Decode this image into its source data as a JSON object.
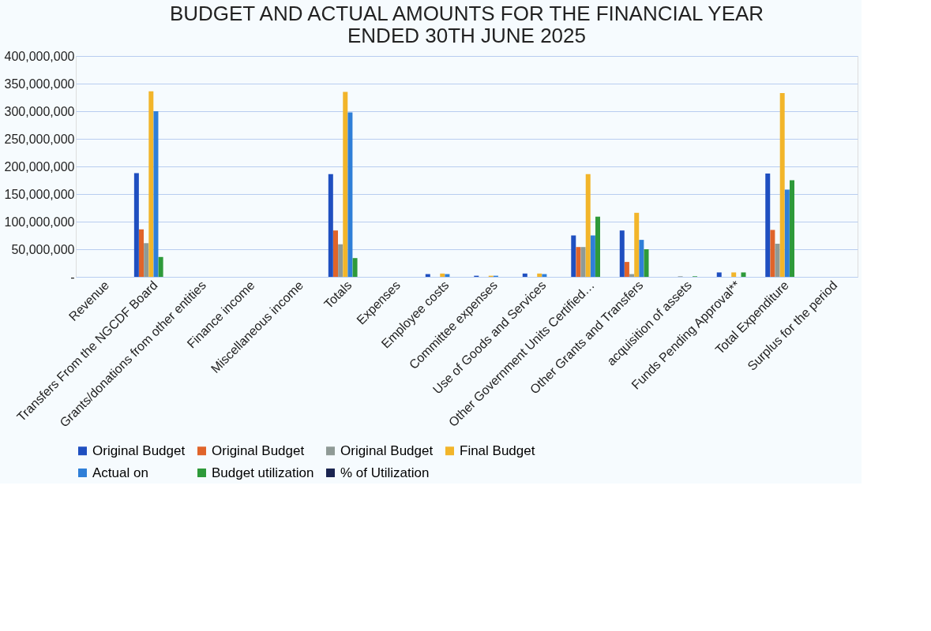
{
  "chart_data": {
    "type": "bar",
    "title": "BUDGET AND ACTUAL AMOUNTS FOR THE FINANCIAL YEAR ENDED 30TH JUNE 2025",
    "categories": [
      "Revenue",
      "Transfers From the NGCDF Board",
      "Grants/donations from other entities",
      "Finance income",
      "Miscellaneous income",
      "Totals",
      "Expenses",
      "Employee costs",
      "Committee expenses",
      "Use of Goods and Services",
      "Other Government Units Certified…",
      "Other Grants and Transfers",
      "acquisition of assets",
      "Funds Pending Approval**",
      "Total Expenditure",
      "Surplus for the period"
    ],
    "series": [
      {
        "name": "Original Budget",
        "color": "#1f4fc0",
        "values": [
          null,
          188000000,
          null,
          null,
          null,
          186000000,
          null,
          5000000,
          2000000,
          6000000,
          75000000,
          84000000,
          null,
          8000000,
          187000000,
          null
        ]
      },
      {
        "name": "Original Budget",
        "color": "#e0642a",
        "values": [
          null,
          86000000,
          null,
          null,
          null,
          84000000,
          null,
          null,
          null,
          null,
          54000000,
          27000000,
          null,
          null,
          85000000,
          null
        ]
      },
      {
        "name": "Original Budget",
        "color": "#8f9a96",
        "values": [
          null,
          61000000,
          null,
          null,
          null,
          59000000,
          null,
          null,
          null,
          null,
          54000000,
          5000000,
          1000000,
          null,
          60000000,
          null
        ]
      },
      {
        "name": "Final Budget",
        "color": "#f2b52a",
        "values": [
          null,
          336000000,
          null,
          null,
          null,
          335000000,
          null,
          6000000,
          2000000,
          6000000,
          186000000,
          116000000,
          null,
          8000000,
          333000000,
          null
        ]
      },
      {
        "name": "Actual on",
        "color": "#2f7fd8",
        "values": [
          null,
          300000000,
          null,
          null,
          null,
          298000000,
          null,
          5000000,
          2000000,
          5000000,
          75000000,
          67000000,
          null,
          null,
          158000000,
          null
        ]
      },
      {
        "name": "Budget utilization",
        "color": "#2e9a3a",
        "values": [
          null,
          36000000,
          null,
          null,
          null,
          34000000,
          null,
          null,
          null,
          null,
          109000000,
          50000000,
          1000000,
          8000000,
          175000000,
          null
        ]
      },
      {
        "name": "% of Utilization",
        "color": "#1a2450",
        "values": [
          null,
          null,
          null,
          null,
          null,
          null,
          null,
          null,
          null,
          null,
          null,
          null,
          null,
          null,
          null,
          null
        ]
      }
    ],
    "ylim": [
      0,
      400000000
    ],
    "yticks": [
      {
        "value": 0,
        "label": "-"
      },
      {
        "value": 50000000,
        "label": "50,000,000"
      },
      {
        "value": 100000000,
        "label": "100,000,000"
      },
      {
        "value": 150000000,
        "label": "150,000,000"
      },
      {
        "value": 200000000,
        "label": "200,000,000"
      },
      {
        "value": 250000000,
        "label": "250,000,000"
      },
      {
        "value": 300000000,
        "label": "300,000,000"
      },
      {
        "value": 350000000,
        "label": "350,000,000"
      },
      {
        "value": 400000000,
        "label": "400,000,000"
      }
    ],
    "grid": "y",
    "legend": "bottom"
  }
}
